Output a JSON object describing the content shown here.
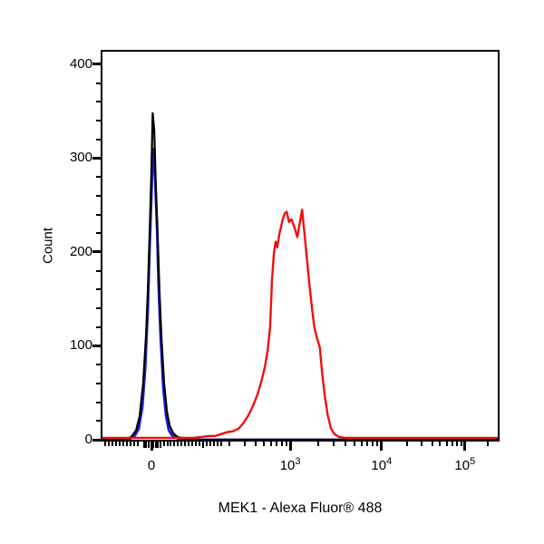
{
  "window": {
    "background": "#ffffff"
  },
  "chart_data": {
    "type": "line",
    "chart_kind": "flow-cytometry-histogram-overlay",
    "title": "",
    "xlabel": "MEK1 - Alexa Fluor® 488",
    "ylabel": "Count",
    "legend": "none",
    "grid": false,
    "x_axis": {
      "scale": "biexponential-log",
      "labels": [
        {
          "base": "0",
          "sup": "",
          "frac": 0.124
        },
        {
          "base": "10",
          "sup": "3",
          "frac": 0.475
        },
        {
          "base": "10",
          "sup": "4",
          "frac": 0.706
        },
        {
          "base": "10",
          "sup": "5",
          "frac": 0.917
        }
      ],
      "major_fracs": [
        0.124,
        0.475,
        0.706,
        0.917
      ],
      "mid_fracs": [
        0.105,
        0.111,
        0.117,
        0.123,
        0.129,
        0.135,
        0.141,
        0.147,
        0.255
      ],
      "minor_fracs": [
        0.007,
        0.016,
        0.025,
        0.034,
        0.044,
        0.053,
        0.062,
        0.071,
        0.08,
        0.089,
        0.155,
        0.164,
        0.173,
        0.182,
        0.191,
        0.2,
        0.209,
        0.218,
        0.227,
        0.236,
        0.245,
        0.264,
        0.273,
        0.282,
        0.291,
        0.3,
        0.321,
        0.36,
        0.387,
        0.409,
        0.426,
        0.441,
        0.453,
        0.465,
        0.545,
        0.585,
        0.614,
        0.637,
        0.655,
        0.67,
        0.684,
        0.696,
        0.77,
        0.807,
        0.834,
        0.854,
        0.871,
        0.885,
        0.897,
        0.908,
        0.975
      ]
    },
    "y_axis": {
      "min": 0,
      "max": 413,
      "major_ticks": [
        0,
        100,
        200,
        300,
        400
      ],
      "major_labels": [
        "0",
        "100",
        "200",
        "300",
        "400"
      ],
      "minor_step": 20
    },
    "series": [
      {
        "name": "blue-curve",
        "color": "#1c1cd8",
        "stroke_width": 2.8,
        "peak_count": 310,
        "peak_x_label": "0",
        "points": [
          [
            0,
            0
          ],
          [
            0.062,
            0
          ],
          [
            0.08,
            3
          ],
          [
            0.092,
            12
          ],
          [
            0.101,
            35
          ],
          [
            0.108,
            75
          ],
          [
            0.115,
            140
          ],
          [
            0.119,
            200
          ],
          [
            0.124,
            262
          ],
          [
            0.128,
            310
          ],
          [
            0.133,
            280
          ],
          [
            0.138,
            225
          ],
          [
            0.142,
            165
          ],
          [
            0.147,
            110
          ],
          [
            0.154,
            55
          ],
          [
            0.161,
            25
          ],
          [
            0.168,
            10
          ],
          [
            0.177,
            4
          ],
          [
            0.193,
            1
          ],
          [
            0.21,
            0
          ],
          [
            1,
            0
          ]
        ]
      },
      {
        "name": "black-curve",
        "color": "#000000",
        "stroke_width": 2.2,
        "peak_count": 348,
        "peak_x_label": "0",
        "points": [
          [
            0,
            0
          ],
          [
            0.045,
            0
          ],
          [
            0.057,
            1
          ],
          [
            0.073,
            3
          ],
          [
            0.085,
            10
          ],
          [
            0.094,
            25
          ],
          [
            0.103,
            60
          ],
          [
            0.11,
            110
          ],
          [
            0.115,
            160
          ],
          [
            0.119,
            215
          ],
          [
            0.124,
            290
          ],
          [
            0.127,
            348
          ],
          [
            0.131,
            330
          ],
          [
            0.135,
            270
          ],
          [
            0.14,
            215
          ],
          [
            0.144,
            160
          ],
          [
            0.149,
            110
          ],
          [
            0.156,
            60
          ],
          [
            0.163,
            30
          ],
          [
            0.17,
            15
          ],
          [
            0.179,
            7
          ],
          [
            0.19,
            3
          ],
          [
            0.211,
            1
          ],
          [
            0.234,
            0
          ],
          [
            1,
            0
          ]
        ]
      },
      {
        "name": "red-curve",
        "color": "#f30e0e",
        "stroke_width": 2.4,
        "peak_count": 245,
        "peak_x_label": "10^3",
        "points": [
          [
            0,
            2
          ],
          [
            0.23,
            2
          ],
          [
            0.25,
            3
          ],
          [
            0.27,
            4
          ],
          [
            0.285,
            4
          ],
          [
            0.3,
            6
          ],
          [
            0.315,
            8
          ],
          [
            0.33,
            9
          ],
          [
            0.345,
            12
          ],
          [
            0.357,
            18
          ],
          [
            0.369,
            26
          ],
          [
            0.381,
            36
          ],
          [
            0.392,
            48
          ],
          [
            0.402,
            62
          ],
          [
            0.411,
            78
          ],
          [
            0.418,
            95
          ],
          [
            0.424,
            120
          ],
          [
            0.429,
            170
          ],
          [
            0.434,
            200
          ],
          [
            0.438,
            211
          ],
          [
            0.442,
            205
          ],
          [
            0.448,
            220
          ],
          [
            0.455,
            233
          ],
          [
            0.461,
            241
          ],
          [
            0.466,
            243
          ],
          [
            0.472,
            232
          ],
          [
            0.478,
            235
          ],
          [
            0.486,
            226
          ],
          [
            0.493,
            216
          ],
          [
            0.498,
            228
          ],
          [
            0.505,
            245
          ],
          [
            0.511,
            220
          ],
          [
            0.516,
            198
          ],
          [
            0.523,
            168
          ],
          [
            0.53,
            140
          ],
          [
            0.536,
            120
          ],
          [
            0.543,
            108
          ],
          [
            0.55,
            98
          ],
          [
            0.556,
            70
          ],
          [
            0.563,
            45
          ],
          [
            0.57,
            26
          ],
          [
            0.578,
            12
          ],
          [
            0.587,
            6
          ],
          [
            0.598,
            3
          ],
          [
            0.615,
            2
          ],
          [
            1,
            2
          ]
        ]
      }
    ]
  }
}
